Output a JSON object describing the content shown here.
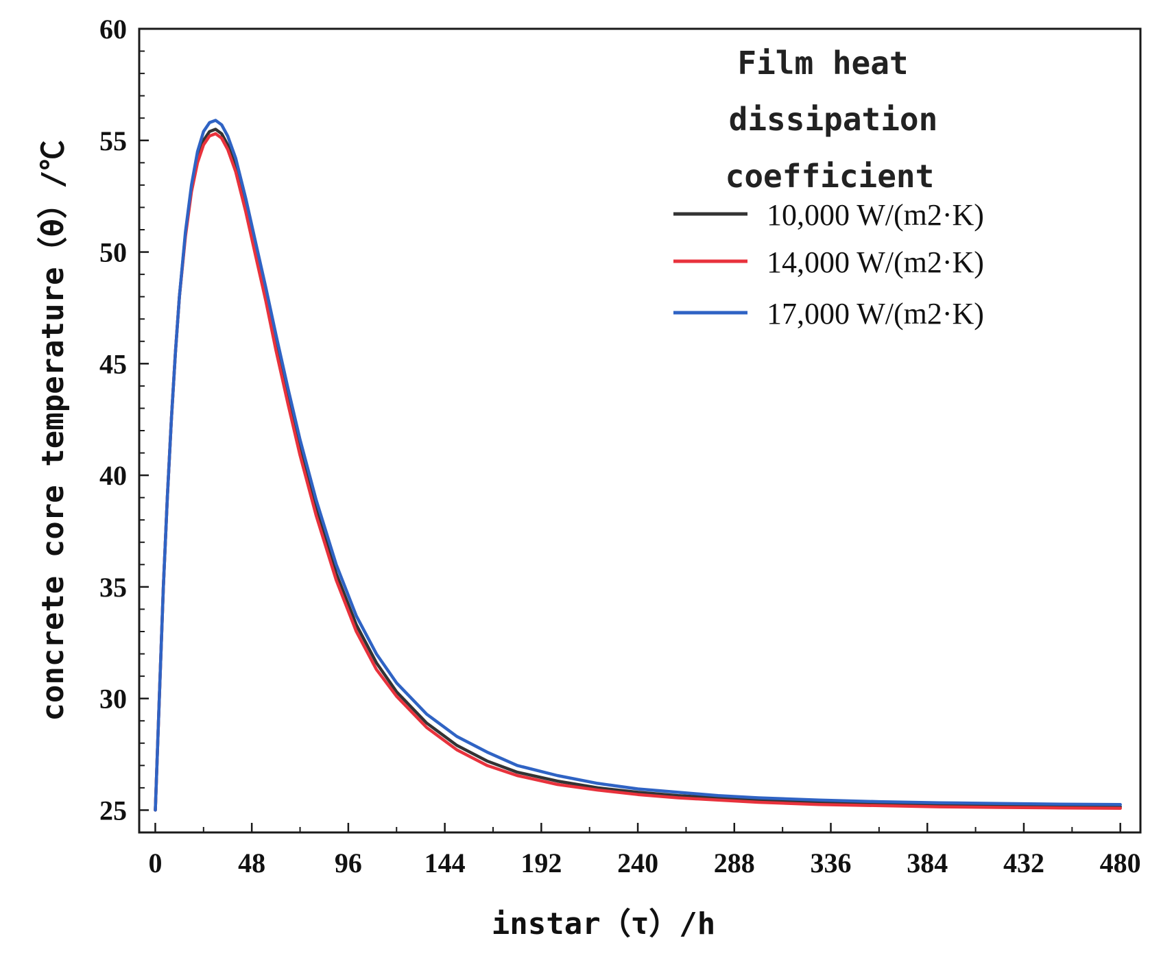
{
  "chart_data": {
    "type": "line",
    "title": "",
    "xlabel": "instar（τ）/h",
    "ylabel": "concrete core temperature（θ）/℃",
    "xlim": [
      -8,
      490
    ],
    "ylim": [
      24,
      60
    ],
    "xticks": [
      0,
      48,
      96,
      144,
      192,
      240,
      288,
      336,
      384,
      432,
      480
    ],
    "yticks": [
      25,
      30,
      35,
      40,
      45,
      50,
      55,
      60
    ],
    "x_tick_labels": [
      "0",
      "48",
      "96",
      "144",
      "192",
      "240",
      "288",
      "336",
      "384",
      "432",
      "480"
    ],
    "y_tick_labels": [
      "25",
      "30",
      "35",
      "40",
      "45",
      "50",
      "55",
      "60"
    ],
    "legend": {
      "title_lines": [
        "Film heat",
        "dissipation",
        "coefficient"
      ],
      "position": "top-right"
    },
    "x": [
      0,
      2,
      4,
      6,
      8,
      10,
      12,
      15,
      18,
      21,
      24,
      27,
      30,
      33,
      36,
      40,
      45,
      50,
      55,
      60,
      66,
      72,
      80,
      90,
      100,
      110,
      120,
      135,
      150,
      165,
      180,
      200,
      220,
      240,
      260,
      280,
      300,
      330,
      360,
      390,
      420,
      450,
      480
    ],
    "series": [
      {
        "name": "10,000 W/(m2·K)",
        "color": "#333333",
        "values": [
          25.0,
          30.0,
          35.0,
          39.0,
          42.5,
          45.5,
          48.0,
          50.8,
          52.8,
          54.2,
          55.0,
          55.4,
          55.5,
          55.3,
          54.8,
          53.8,
          52.0,
          50.0,
          48.0,
          45.9,
          43.5,
          41.2,
          38.5,
          35.6,
          33.3,
          31.6,
          30.3,
          28.9,
          27.9,
          27.2,
          26.7,
          26.3,
          26.0,
          25.8,
          25.65,
          25.55,
          25.45,
          25.35,
          25.3,
          25.25,
          25.2,
          25.18,
          25.15
        ]
      },
      {
        "name": "14,000 W/(m2·K)",
        "color": "#e8323c",
        "values": [
          25.0,
          30.0,
          35.0,
          39.0,
          42.5,
          45.5,
          48.0,
          50.7,
          52.7,
          54.0,
          54.8,
          55.2,
          55.3,
          55.1,
          54.6,
          53.6,
          51.8,
          49.8,
          47.8,
          45.6,
          43.2,
          40.9,
          38.2,
          35.3,
          33.0,
          31.3,
          30.1,
          28.7,
          27.7,
          27.0,
          26.55,
          26.15,
          25.9,
          25.7,
          25.55,
          25.45,
          25.35,
          25.25,
          25.2,
          25.15,
          25.12,
          25.1,
          25.08
        ]
      },
      {
        "name": "17,000 W/(m2·K)",
        "color": "#2f63c4",
        "values": [
          25.0,
          30.0,
          35.0,
          39.0,
          42.5,
          45.5,
          48.0,
          50.9,
          53.0,
          54.5,
          55.4,
          55.8,
          55.9,
          55.7,
          55.2,
          54.2,
          52.4,
          50.4,
          48.4,
          46.3,
          43.9,
          41.6,
          38.9,
          36.0,
          33.7,
          32.0,
          30.7,
          29.3,
          28.3,
          27.6,
          27.0,
          26.55,
          26.2,
          25.95,
          25.8,
          25.65,
          25.55,
          25.45,
          25.38,
          25.33,
          25.3,
          25.27,
          25.25
        ]
      }
    ]
  }
}
